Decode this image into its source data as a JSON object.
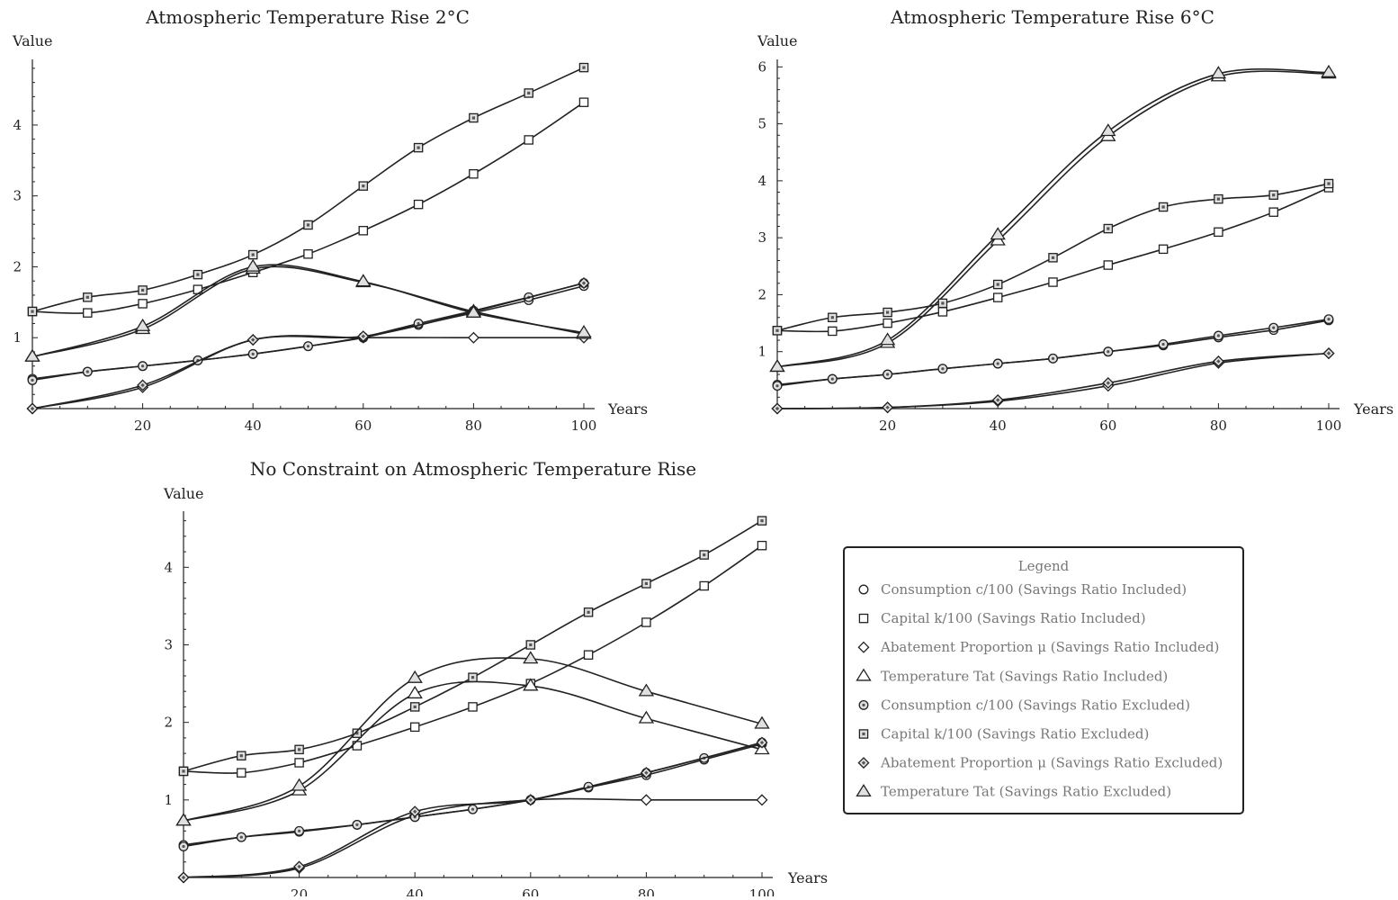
{
  "chart_data": [
    {
      "type": "line",
      "title": "Atmospheric Temperature Rise 2°C",
      "xlabel": "Years",
      "ylabel": "Value",
      "xlim": [
        0,
        100
      ],
      "ylim": [
        0,
        4.9
      ],
      "xticks": [
        20,
        40,
        60,
        80,
        100
      ],
      "yticks": [
        1,
        2,
        3,
        4
      ],
      "grid": false,
      "series": [
        {
          "name": "Consumption c/100 (Savings Ratio Included)",
          "marker": "circle",
          "x": [
            0,
            10,
            20,
            30,
            40,
            50,
            60,
            70,
            80,
            90,
            100
          ],
          "y": [
            0.42,
            0.52,
            0.6,
            0.68,
            0.77,
            0.88,
            1.0,
            1.18,
            1.35,
            1.53,
            1.73
          ]
        },
        {
          "name": "Capital k/100 (Savings Ratio Included)",
          "marker": "square",
          "x": [
            0,
            10,
            20,
            30,
            40,
            50,
            60,
            70,
            80,
            90,
            100
          ],
          "y": [
            1.37,
            1.35,
            1.48,
            1.68,
            1.92,
            2.18,
            2.51,
            2.88,
            3.31,
            3.79,
            4.32
          ]
        },
        {
          "name": "Abatement Proportion μ (Savings Ratio Included)",
          "marker": "diamond",
          "x": [
            0,
            20,
            40,
            60,
            80,
            100
          ],
          "y": [
            0.0,
            0.3,
            0.97,
            1.0,
            1.0,
            1.0
          ]
        },
        {
          "name": "Temperature Tat (Savings Ratio Included)",
          "marker": "triangle",
          "x": [
            0,
            20,
            40,
            60,
            80,
            100
          ],
          "y": [
            0.73,
            1.12,
            1.97,
            1.78,
            1.37,
            1.05
          ]
        },
        {
          "name": "Consumption c/100 (Savings Ratio Excluded)",
          "marker": "circle-dot",
          "x": [
            0,
            10,
            20,
            30,
            40,
            50,
            60,
            70,
            80,
            90,
            100
          ],
          "y": [
            0.4,
            0.52,
            0.6,
            0.68,
            0.77,
            0.88,
            1.01,
            1.2,
            1.38,
            1.57,
            1.77
          ]
        },
        {
          "name": "Capital k/100 (Savings Ratio Excluded)",
          "marker": "square-dot",
          "x": [
            0,
            10,
            20,
            30,
            40,
            50,
            60,
            70,
            80,
            90,
            100
          ],
          "y": [
            1.37,
            1.57,
            1.67,
            1.89,
            2.17,
            2.59,
            3.14,
            3.68,
            4.1,
            4.45,
            4.81
          ]
        },
        {
          "name": "Abatement Proportion μ (Savings Ratio Excluded)",
          "marker": "diamond-dot",
          "x": [
            0,
            20,
            40,
            60,
            80,
            100
          ],
          "y": [
            0.0,
            0.33,
            0.97,
            1.02,
            1.37,
            1.77
          ]
        },
        {
          "name": "Temperature Tat (Savings Ratio Excluded)",
          "marker": "triangle-dot",
          "x": [
            0,
            20,
            40,
            60,
            80,
            100
          ],
          "y": [
            0.73,
            1.16,
            2.0,
            1.79,
            1.35,
            1.07
          ]
        }
      ]
    },
    {
      "type": "line",
      "title": "Atmospheric Temperature Rise 6°C",
      "xlabel": "Years",
      "ylabel": "Value",
      "xlim": [
        0,
        100
      ],
      "ylim": [
        0,
        6.1
      ],
      "xticks": [
        20,
        40,
        60,
        80,
        100
      ],
      "yticks": [
        1,
        2,
        3,
        4,
        5,
        6
      ],
      "grid": false,
      "series": [
        {
          "name": "Consumption c/100 (Savings Ratio Included)",
          "marker": "circle",
          "x": [
            0,
            10,
            20,
            30,
            40,
            50,
            60,
            70,
            80,
            90,
            100
          ],
          "y": [
            0.42,
            0.52,
            0.6,
            0.7,
            0.79,
            0.88,
            1.0,
            1.11,
            1.25,
            1.38,
            1.55
          ]
        },
        {
          "name": "Capital k/100 (Savings Ratio Included)",
          "marker": "square",
          "x": [
            0,
            10,
            20,
            30,
            40,
            50,
            60,
            70,
            80,
            90,
            100
          ],
          "y": [
            1.37,
            1.36,
            1.5,
            1.7,
            1.95,
            2.22,
            2.52,
            2.8,
            3.1,
            3.45,
            3.88
          ]
        },
        {
          "name": "Abatement Proportion μ (Savings Ratio Included)",
          "marker": "diamond",
          "x": [
            0,
            20,
            40,
            60,
            80,
            100
          ],
          "y": [
            0.0,
            0.02,
            0.13,
            0.4,
            0.8,
            0.97
          ]
        },
        {
          "name": "Temperature Tat (Savings Ratio Included)",
          "marker": "triangle",
          "x": [
            0,
            20,
            40,
            60,
            80,
            100
          ],
          "y": [
            0.73,
            1.15,
            2.95,
            4.78,
            5.83,
            5.88
          ]
        },
        {
          "name": "Consumption c/100 (Savings Ratio Excluded)",
          "marker": "circle-dot",
          "x": [
            0,
            10,
            20,
            30,
            40,
            50,
            60,
            70,
            80,
            90,
            100
          ],
          "y": [
            0.4,
            0.52,
            0.6,
            0.7,
            0.79,
            0.88,
            1.0,
            1.13,
            1.28,
            1.42,
            1.57
          ]
        },
        {
          "name": "Capital k/100 (Savings Ratio Excluded)",
          "marker": "square-dot",
          "x": [
            0,
            10,
            20,
            30,
            40,
            50,
            60,
            70,
            80,
            90,
            100
          ],
          "y": [
            1.37,
            1.6,
            1.69,
            1.85,
            2.18,
            2.65,
            3.16,
            3.54,
            3.68,
            3.75,
            3.95
          ]
        },
        {
          "name": "Abatement Proportion μ (Savings Ratio Excluded)",
          "marker": "diamond-dot",
          "x": [
            0,
            20,
            40,
            60,
            80,
            100
          ],
          "y": [
            0.0,
            0.02,
            0.15,
            0.45,
            0.83,
            0.97
          ]
        },
        {
          "name": "Temperature Tat (Savings Ratio Excluded)",
          "marker": "triangle-dot",
          "x": [
            0,
            20,
            40,
            60,
            80,
            100
          ],
          "y": [
            0.73,
            1.2,
            3.05,
            4.87,
            5.88,
            5.9
          ]
        }
      ]
    },
    {
      "type": "line",
      "title": "No Constraint on Atmospheric Temperature Rise",
      "xlabel": "Years",
      "ylabel": "Value",
      "xlim": [
        0,
        100
      ],
      "ylim": [
        0,
        4.7
      ],
      "xticks": [
        20,
        40,
        60,
        80,
        100
      ],
      "yticks": [
        1,
        2,
        3,
        4
      ],
      "grid": false,
      "series": [
        {
          "name": "Consumption c/100 (Savings Ratio Included)",
          "marker": "circle",
          "x": [
            0,
            10,
            20,
            30,
            40,
            50,
            60,
            70,
            80,
            90,
            100
          ],
          "y": [
            0.42,
            0.52,
            0.59,
            0.68,
            0.78,
            0.88,
            1.0,
            1.16,
            1.32,
            1.52,
            1.72
          ]
        },
        {
          "name": "Capital k/100 (Savings Ratio Included)",
          "marker": "square",
          "x": [
            0,
            10,
            20,
            30,
            40,
            50,
            60,
            70,
            80,
            90,
            100
          ],
          "y": [
            1.37,
            1.35,
            1.48,
            1.7,
            1.94,
            2.2,
            2.5,
            2.87,
            3.29,
            3.76,
            4.28
          ]
        },
        {
          "name": "Abatement Proportion μ (Savings Ratio Included)",
          "marker": "diamond",
          "x": [
            0,
            20,
            40,
            60,
            80,
            100
          ],
          "y": [
            0.0,
            0.12,
            0.8,
            1.0,
            1.0,
            1.0
          ]
        },
        {
          "name": "Temperature Tat (Savings Ratio Included)",
          "marker": "triangle",
          "x": [
            0,
            20,
            40,
            60,
            80,
            100
          ],
          "y": [
            0.73,
            1.12,
            2.37,
            2.47,
            2.05,
            1.65
          ]
        },
        {
          "name": "Consumption c/100 (Savings Ratio Excluded)",
          "marker": "circle-dot",
          "x": [
            0,
            10,
            20,
            30,
            40,
            50,
            60,
            70,
            80,
            90,
            100
          ],
          "y": [
            0.4,
            0.52,
            0.6,
            0.68,
            0.78,
            0.88,
            1.0,
            1.17,
            1.35,
            1.54,
            1.74
          ]
        },
        {
          "name": "Capital k/100 (Savings Ratio Excluded)",
          "marker": "square-dot",
          "x": [
            0,
            10,
            20,
            30,
            40,
            50,
            60,
            70,
            80,
            90,
            100
          ],
          "y": [
            1.37,
            1.57,
            1.65,
            1.86,
            2.2,
            2.58,
            3.0,
            3.42,
            3.79,
            4.16,
            4.6
          ]
        },
        {
          "name": "Abatement Proportion μ (Savings Ratio Excluded)",
          "marker": "diamond-dot",
          "x": [
            0,
            20,
            40,
            60,
            80,
            100
          ],
          "y": [
            0.0,
            0.14,
            0.85,
            1.0,
            1.35,
            1.74
          ]
        },
        {
          "name": "Temperature Tat (Savings Ratio Excluded)",
          "marker": "triangle-dot",
          "x": [
            0,
            20,
            40,
            60,
            80,
            100
          ],
          "y": [
            0.73,
            1.18,
            2.57,
            2.82,
            2.4,
            1.98
          ]
        }
      ]
    }
  ],
  "legend": {
    "title": "Legend",
    "placement": "bottom-right",
    "items": [
      {
        "marker": "circle",
        "label": "Consumption c/100 (Savings Ratio Included)"
      },
      {
        "marker": "square",
        "label": "Capital k/100 (Savings Ratio Included)"
      },
      {
        "marker": "diamond",
        "label": "Abatement Proportion μ (Savings Ratio Included)"
      },
      {
        "marker": "triangle",
        "label": "Temperature Tat (Savings Ratio Included)"
      },
      {
        "marker": "circle-dot",
        "label": "Consumption c/100 (Savings Ratio Excluded)"
      },
      {
        "marker": "square-dot",
        "label": "Capital k/100 (Savings Ratio Excluded)"
      },
      {
        "marker": "diamond-dot",
        "label": "Abatement Proportion μ (Savings Ratio Excluded)"
      },
      {
        "marker": "triangle-dot",
        "label": "Temperature Tat (Savings Ratio Excluded)"
      }
    ]
  },
  "colors": {
    "line": "#222222",
    "marker_fill": "#ffffff",
    "marker_dot_fill": "#e0e0e0",
    "legend_text": "#777777"
  }
}
